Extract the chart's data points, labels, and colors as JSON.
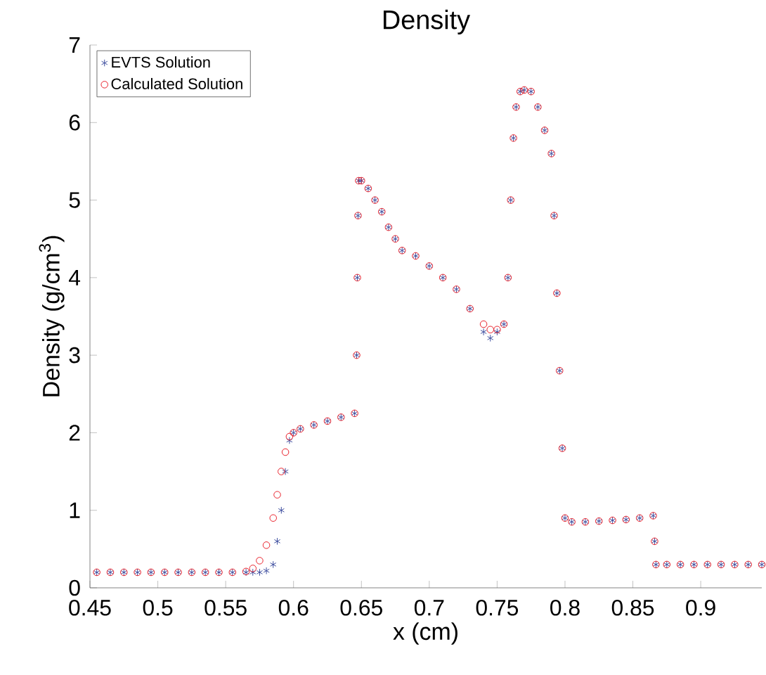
{
  "chart_data": {
    "type": "scatter",
    "title": "Density",
    "xlabel": "x (cm)",
    "ylabel": "Density (g/cm$^{3}$)",
    "xlim": [
      0.45,
      0.945
    ],
    "ylim": [
      0,
      7
    ],
    "xticks": [
      0.45,
      0.5,
      0.55,
      0.6,
      0.65,
      0.7,
      0.75,
      0.8,
      0.85,
      0.9
    ],
    "yticks": [
      0,
      1,
      2,
      3,
      4,
      5,
      6,
      7
    ],
    "legend": "top left",
    "grid": false,
    "x": [
      0.455,
      0.465,
      0.475,
      0.485,
      0.495,
      0.505,
      0.515,
      0.525,
      0.535,
      0.545,
      0.555,
      0.565,
      0.57,
      0.575,
      0.58,
      0.585,
      0.588,
      0.591,
      0.594,
      0.597,
      0.6,
      0.605,
      0.615,
      0.625,
      0.635,
      0.645,
      0.6465,
      0.647,
      0.6475,
      0.648,
      0.65,
      0.655,
      0.66,
      0.665,
      0.67,
      0.675,
      0.68,
      0.69,
      0.7,
      0.71,
      0.72,
      0.73,
      0.74,
      0.745,
      0.75,
      0.755,
      0.758,
      0.76,
      0.762,
      0.764,
      0.767,
      0.77,
      0.775,
      0.78,
      0.785,
      0.79,
      0.792,
      0.794,
      0.796,
      0.798,
      0.8,
      0.805,
      0.815,
      0.825,
      0.835,
      0.845,
      0.855,
      0.865,
      0.866,
      0.867,
      0.875,
      0.885,
      0.895,
      0.905,
      0.915,
      0.925,
      0.935,
      0.945
    ],
    "series": [
      {
        "name": "EVTS Solution",
        "color": "#3f4fa0",
        "marker": "cross",
        "values": [
          0.2,
          0.2,
          0.2,
          0.2,
          0.2,
          0.2,
          0.2,
          0.2,
          0.2,
          0.2,
          0.2,
          0.2,
          0.2,
          0.2,
          0.22,
          0.3,
          0.6,
          1.0,
          1.5,
          1.9,
          2.0,
          2.05,
          2.1,
          2.15,
          2.2,
          2.25,
          3.0,
          4.0,
          4.8,
          5.25,
          5.25,
          5.15,
          5.0,
          4.85,
          4.65,
          4.5,
          4.35,
          4.28,
          4.15,
          4.0,
          3.85,
          3.6,
          3.3,
          3.22,
          3.3,
          3.4,
          4.0,
          5.0,
          5.8,
          6.2,
          6.4,
          6.42,
          6.4,
          6.2,
          5.9,
          5.6,
          4.8,
          3.8,
          2.8,
          1.8,
          0.9,
          0.85,
          0.85,
          0.86,
          0.87,
          0.88,
          0.9,
          0.93,
          0.6,
          0.3,
          0.3,
          0.3,
          0.3,
          0.3,
          0.3,
          0.3,
          0.3,
          0.3
        ]
      },
      {
        "name": "Calculated Solution",
        "color": "#e8202a",
        "marker": "circle",
        "values": [
          0.2,
          0.2,
          0.2,
          0.2,
          0.2,
          0.2,
          0.2,
          0.2,
          0.2,
          0.2,
          0.2,
          0.21,
          0.25,
          0.35,
          0.55,
          0.9,
          1.2,
          1.5,
          1.75,
          1.95,
          2.0,
          2.05,
          2.1,
          2.15,
          2.2,
          2.25,
          3.0,
          4.0,
          4.8,
          5.25,
          5.25,
          5.15,
          5.0,
          4.85,
          4.65,
          4.5,
          4.35,
          4.28,
          4.15,
          4.0,
          3.85,
          3.6,
          3.4,
          3.33,
          3.33,
          3.4,
          4.0,
          5.0,
          5.8,
          6.2,
          6.4,
          6.42,
          6.4,
          6.2,
          5.9,
          5.6,
          4.8,
          3.8,
          2.8,
          1.8,
          0.9,
          0.85,
          0.85,
          0.86,
          0.87,
          0.88,
          0.9,
          0.93,
          0.6,
          0.3,
          0.3,
          0.3,
          0.3,
          0.3,
          0.3,
          0.3,
          0.3,
          0.3
        ]
      }
    ]
  }
}
